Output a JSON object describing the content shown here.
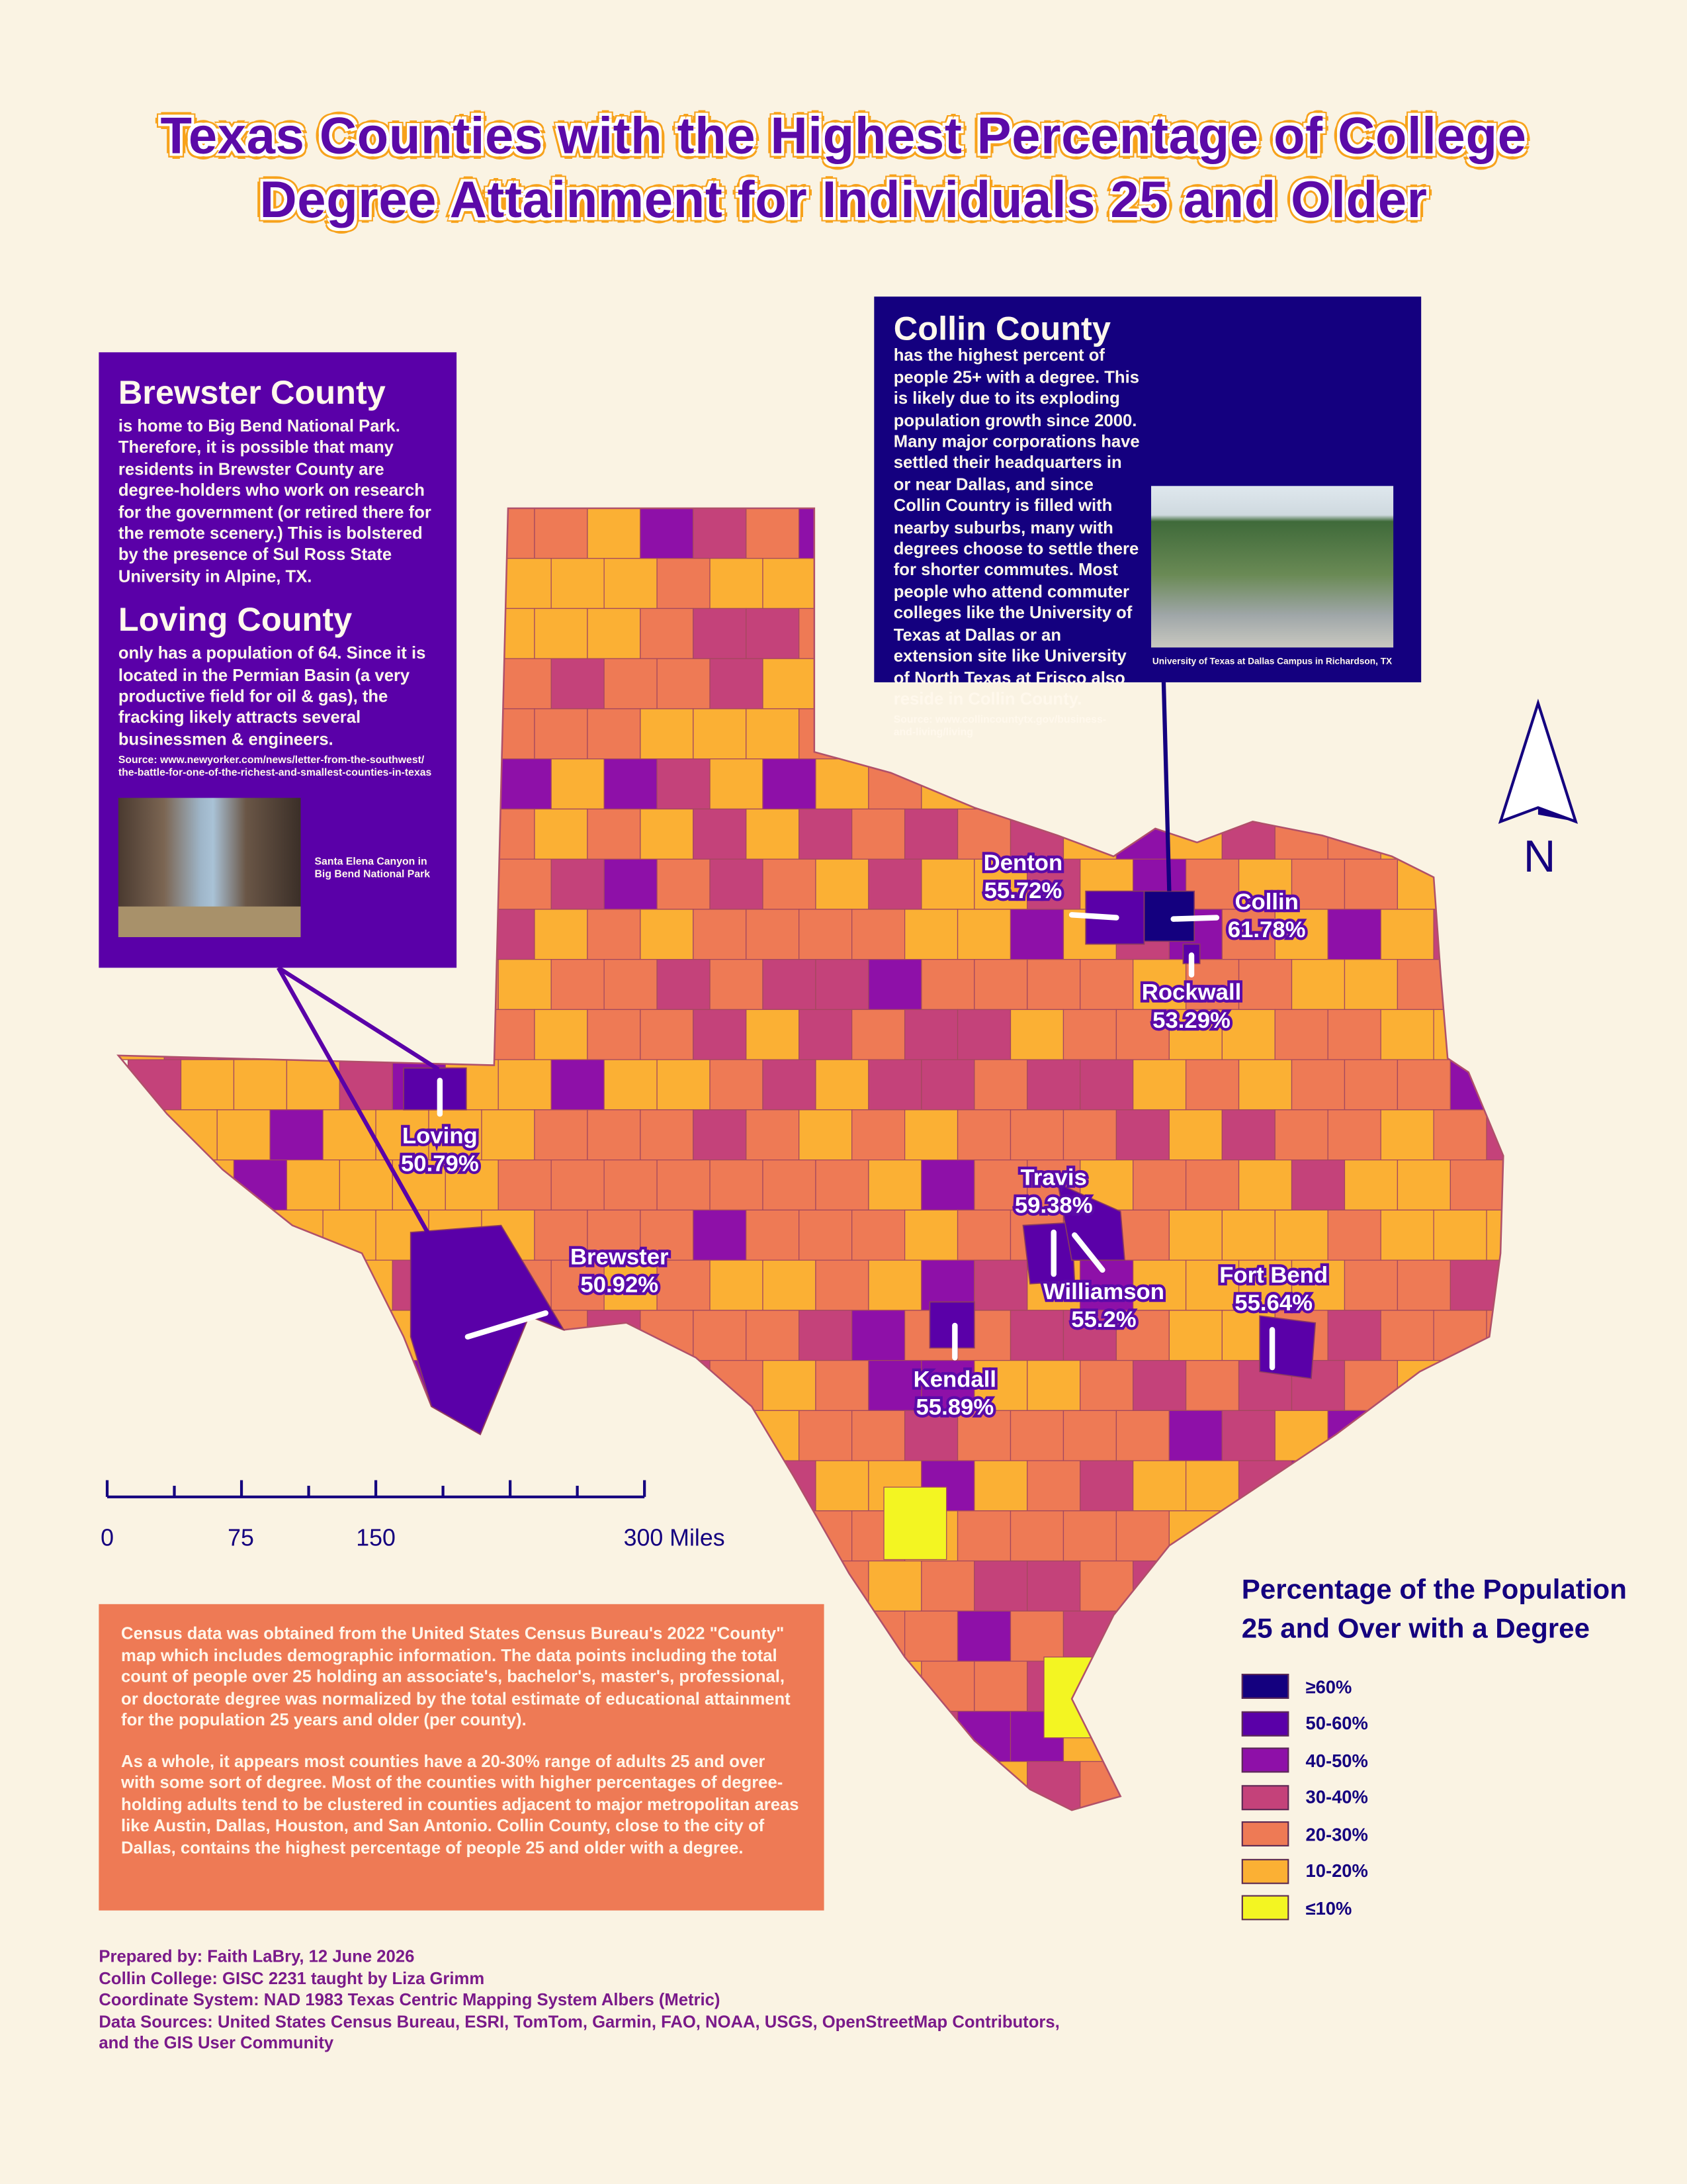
{
  "title": [
    "Texas Counties with the Highest Percentage of College",
    "Degree Attainment for Individuals 25 and Older"
  ],
  "brewster_box": {
    "heading": "Brewster County",
    "text": "is home to Big Bend National Park. Therefore, it is possible that many residents in Brewster County are degree-holders who work on research for the government (or retired there for the remote scenery.)  This is bolstered by the presence of Sul Ross State University in Alpine, TX.",
    "heading2": "Loving County",
    "text2": "only has a population of 64. Since it is located in the Permian Basin (a very productive field for oil & gas), the fracking likely attracts several businessmen & engineers.",
    "source": "Source: www.newyorker.com/news/letter-from-the-southwest/ the-battle-for-one-of-the-richest-and-smallest-counties-in-texas",
    "caption": "Santa Elena Canyon in Big Bend National Park"
  },
  "collin_box": {
    "heading": "Collin County",
    "text": "has the highest percent of people 25+ with a degree. This is likely due to its exploding population growth since 2000. Many major corporations have settled their headquarters in or near Dallas, and since Collin Country is filled with nearby suburbs, many with degrees choose to settle there for shorter commutes. Most people who attend commuter colleges like the University of Texas at Dallas or an extension site like University of North Texas at Frisco also reside in Collin County.",
    "source": "Source: www.collincountytx.gov/business-and-living/living",
    "caption": "University of Texas at Dallas Campus in Richardson, TX"
  },
  "callouts": [
    {
      "name": "Denton",
      "value": "55.72%"
    },
    {
      "name": "Collin",
      "value": "61.78%"
    },
    {
      "name": "Rockwall",
      "value": "53.29%"
    },
    {
      "name": "Loving",
      "value": "50.79%"
    },
    {
      "name": "Brewster",
      "value": "50.92%"
    },
    {
      "name": "Travis",
      "value": "59.38%"
    },
    {
      "name": "Williamson",
      "value": "55.2%"
    },
    {
      "name": "Fort Bend",
      "value": "55.64%"
    },
    {
      "name": "Kendall",
      "value": "55.89%"
    }
  ],
  "scale_bar": [
    "0",
    "75",
    "150",
    "300 Miles"
  ],
  "north": "N",
  "legend": {
    "title": "Percentage of the Population 25 and Over with a Degree",
    "items": [
      {
        "label": "≥60%",
        "color": "#14007f"
      },
      {
        "label": "50-60%",
        "color": "#5a00a8"
      },
      {
        "label": "40-50%",
        "color": "#8e10a8"
      },
      {
        "label": "30-40%",
        "color": "#c4427a"
      },
      {
        "label": "20-30%",
        "color": "#ee7a55"
      },
      {
        "label": "10-20%",
        "color": "#fbb034"
      },
      {
        "label": "≤10%",
        "color": "#f3f522"
      }
    ]
  },
  "census_note": [
    "Census data was obtained from the United States Census Bureau's 2022 \"County\"  map which includes demographic information. The data points including the total count of people over 25 holding an associate's, bachelor's, master's, professional, or doctorate degree was normalized by the total estimate of educational attainment for the population 25 years and older (per county).",
    "As a whole, it appears most counties have a 20-30% range of adults 25 and over with some sort of degree. Most of the counties with higher percentages of degree-holding adults tend to be clustered in counties adjacent to major metropolitan areas like Austin, Dallas, Houston, and San Antonio. Collin County, close to the city of Dallas, contains the highest percentage of people 25 and older with a degree."
  ],
  "footer": [
    "Prepared by: Faith LaBry, 12 June 2026",
    "Collin College: GISC 2231 taught by Liza Grimm",
    "Coordinate System: NAD 1983 Texas Centric Mapping System Albers (Metric)",
    "Data Sources: United States Census Bureau, ESRI, TomTom, Garmin, FAO, NOAA, USGS, OpenStreetMap Contributors, and the GIS User Community"
  ]
}
